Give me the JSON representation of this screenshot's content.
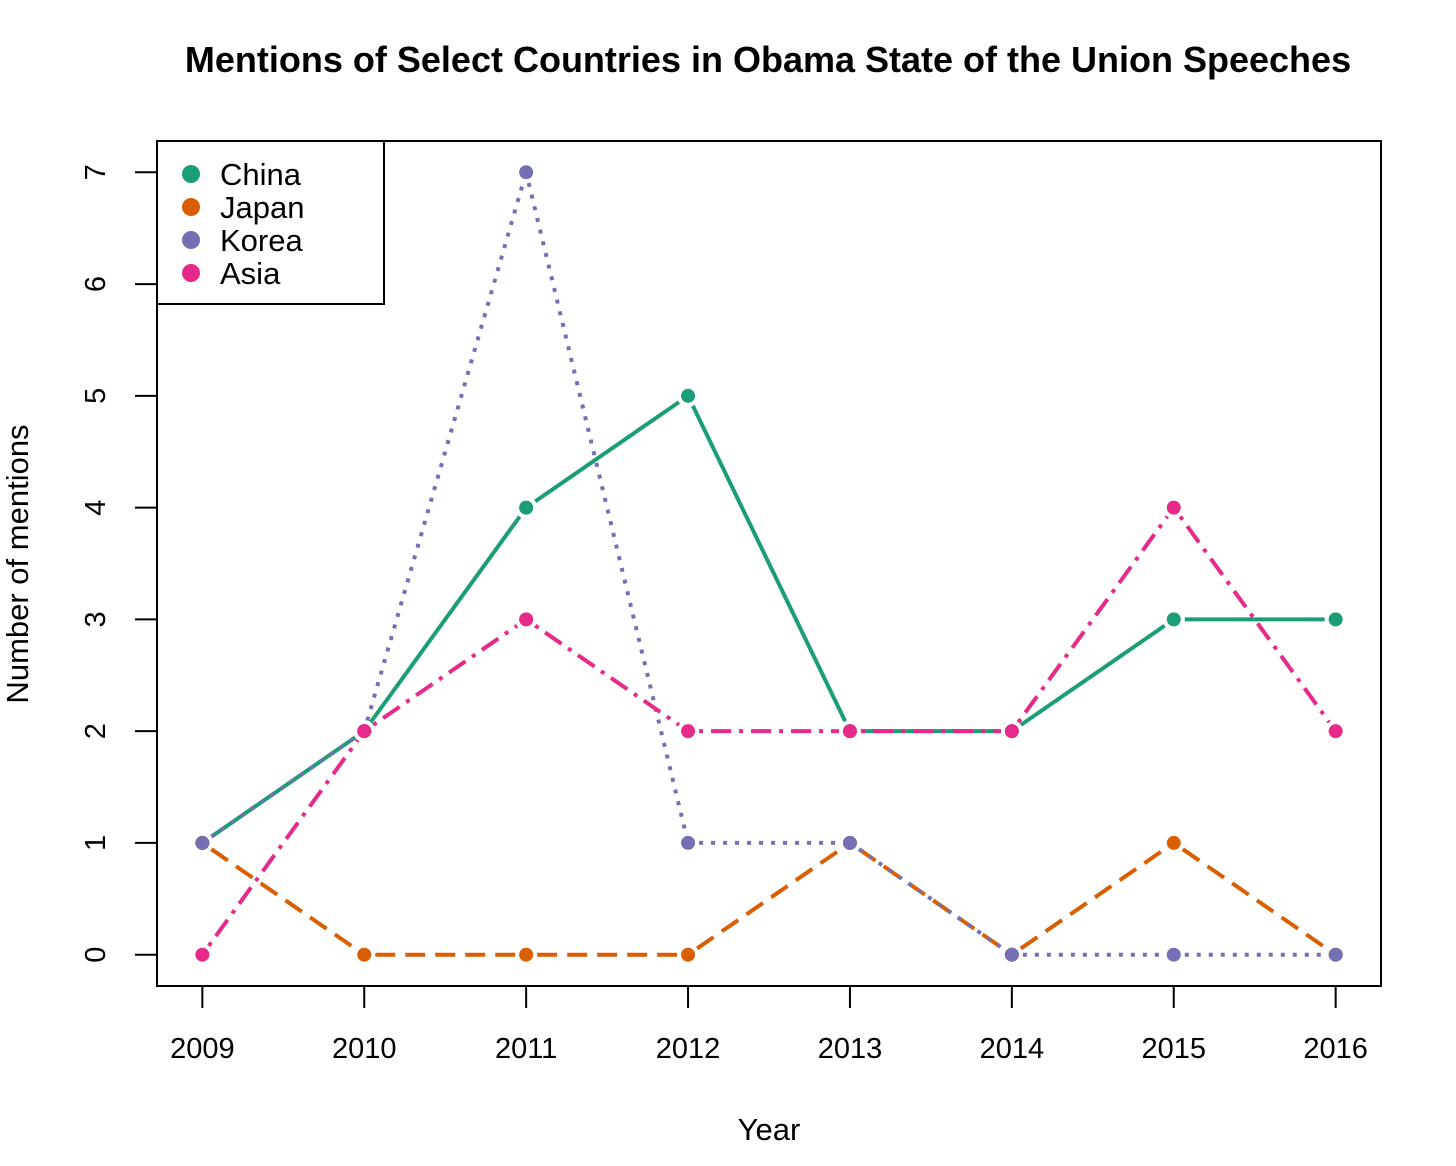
{
  "chart_data": {
    "type": "line",
    "title": "Mentions of Select Countries in Obama State of the Union Speeches",
    "xlabel": "Year",
    "ylabel": "Number of mentions",
    "x": [
      2009,
      2010,
      2011,
      2012,
      2013,
      2014,
      2015,
      2016
    ],
    "x_tick_labels": [
      "2009",
      "2010",
      "2011",
      "2012",
      "2013",
      "2014",
      "2015",
      "2016"
    ],
    "y_ticks": [
      0,
      1,
      2,
      3,
      4,
      5,
      6,
      7
    ],
    "y_tick_labels": [
      "0",
      "1",
      "2",
      "3",
      "4",
      "5",
      "6",
      "7"
    ],
    "xlim": [
      2008.72,
      2016.28
    ],
    "ylim": [
      -0.28,
      7.28
    ],
    "grid": false,
    "legend_position": "top-left",
    "series": [
      {
        "name": "China",
        "values": [
          1,
          2,
          4,
          5,
          2,
          2,
          3,
          3
        ],
        "color": "#1b9e77",
        "line_style": "solid"
      },
      {
        "name": "Japan",
        "values": [
          1,
          0,
          0,
          0,
          1,
          0,
          1,
          0
        ],
        "color": "#d95f02",
        "line_style": "dashed"
      },
      {
        "name": "Korea",
        "values": [
          1,
          2,
          7,
          1,
          1,
          0,
          0,
          0
        ],
        "color": "#7570b3",
        "line_style": "dotted"
      },
      {
        "name": "Asia",
        "values": [
          0,
          2,
          3,
          2,
          2,
          2,
          4,
          2
        ],
        "color": "#e7298a",
        "line_style": "dotdash"
      }
    ]
  }
}
